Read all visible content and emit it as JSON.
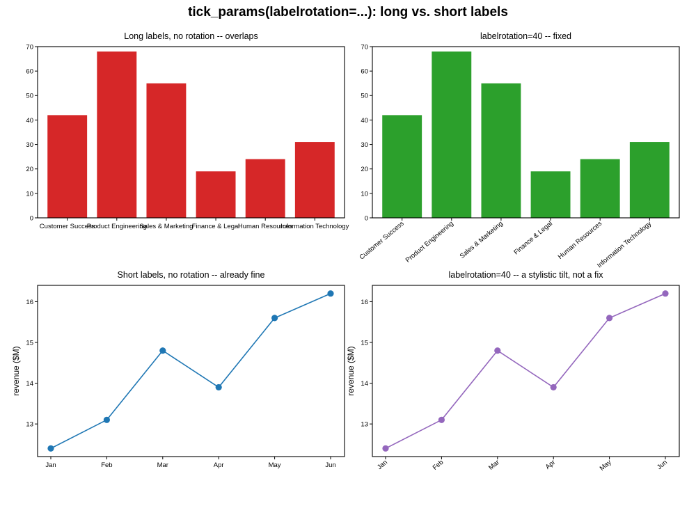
{
  "figure": {
    "suptitle": "tick_params(labelrotation=...): long vs. short labels"
  },
  "chart_data": [
    {
      "type": "bar",
      "title": "Long labels, no rotation -- overlaps",
      "xlabel": "",
      "ylabel": "",
      "categories": [
        "Customer Success",
        "Product Engineering",
        "Sales & Marketing",
        "Finance & Legal",
        "Human Resources",
        "Information Technology"
      ],
      "values": [
        42,
        68,
        55,
        19,
        24,
        31
      ],
      "ylim": [
        0,
        70
      ],
      "yticks": [
        0,
        10,
        20,
        30,
        40,
        50,
        60,
        70
      ],
      "label_rotation": 0,
      "color": "#d62728",
      "grid": false
    },
    {
      "type": "bar",
      "title": "labelrotation=40 -- fixed",
      "xlabel": "",
      "ylabel": "",
      "categories": [
        "Customer Success",
        "Product Engineering",
        "Sales & Marketing",
        "Finance & Legal",
        "Human Resources",
        "Information Technology"
      ],
      "values": [
        42,
        68,
        55,
        19,
        24,
        31
      ],
      "ylim": [
        0,
        70
      ],
      "yticks": [
        0,
        10,
        20,
        30,
        40,
        50,
        60,
        70
      ],
      "label_rotation": 40,
      "color": "#2ca02c",
      "grid": false
    },
    {
      "type": "line",
      "title": "Short labels, no rotation -- already fine",
      "xlabel": "",
      "ylabel": "revenue ($M)",
      "categories": [
        "Jan",
        "Feb",
        "Mar",
        "Apr",
        "May",
        "Jun"
      ],
      "values": [
        12.4,
        13.1,
        14.8,
        13.9,
        15.6,
        16.2
      ],
      "ylim": [
        12.2,
        16.4
      ],
      "yticks": [
        13,
        14,
        15,
        16
      ],
      "label_rotation": 0,
      "color": "#1f77b4",
      "markers": true,
      "grid": false
    },
    {
      "type": "line",
      "title": "labelrotation=40 -- a stylistic tilt, not a fix",
      "xlabel": "",
      "ylabel": "revenue ($M)",
      "categories": [
        "Jan",
        "Feb",
        "Mar",
        "Apr",
        "May",
        "Jun"
      ],
      "values": [
        12.4,
        13.1,
        14.8,
        13.9,
        15.6,
        16.2
      ],
      "ylim": [
        12.2,
        16.4
      ],
      "yticks": [
        13,
        14,
        15,
        16
      ],
      "label_rotation": 40,
      "color": "#9467bd",
      "markers": true,
      "grid": false
    }
  ]
}
